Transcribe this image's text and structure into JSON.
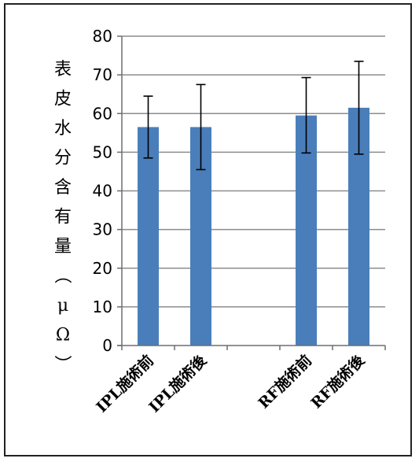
{
  "chart_data": {
    "type": "bar",
    "ylabel": "表皮水分含有量（μΩ）",
    "ylim": [
      0,
      80
    ],
    "yticks": [
      0,
      10,
      20,
      30,
      40,
      50,
      60,
      70,
      80
    ],
    "categories": [
      "IPL施術前",
      "IPL施術後",
      "",
      "RF施術前",
      "RF施術後"
    ],
    "values": [
      56.5,
      56.5,
      null,
      59.5,
      61.5
    ],
    "error_low": [
      48.5,
      45.5,
      null,
      49.8,
      49.5
    ],
    "error_high": [
      64.5,
      67.5,
      null,
      69.3,
      73.5
    ],
    "bar_color": "#4a7ebb",
    "grid": true,
    "legend": "none"
  }
}
